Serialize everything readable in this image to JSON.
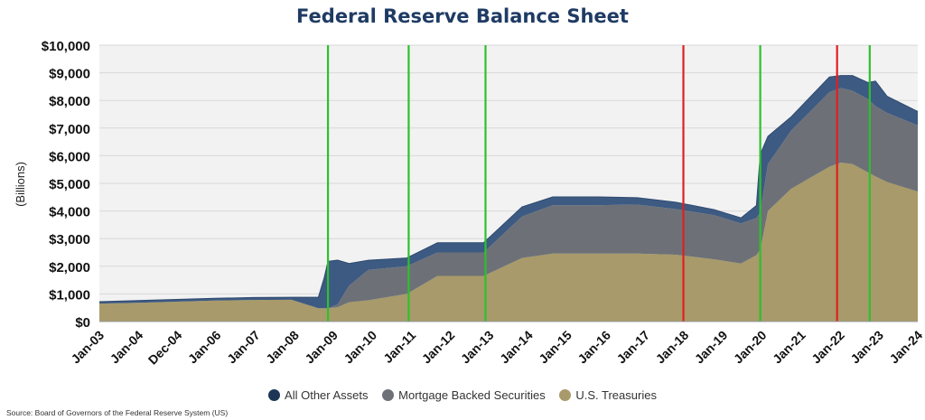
{
  "chart_data": {
    "type": "area",
    "title": "Federal Reserve Balance Sheet",
    "ylabel": "(Billions)",
    "xlabel": "",
    "ylim": [
      0,
      10000
    ],
    "yticks": [
      "$0",
      "$1,000",
      "$2,000",
      "$3,000",
      "$4,000",
      "$5,000",
      "$6,000",
      "$7,000",
      "$8,000",
      "$9,000",
      "$10,000"
    ],
    "x_range": [
      2003.0,
      2024.3
    ],
    "categories": [
      "Jan-03",
      "Jan-04",
      "Dec-04",
      "Jan-06",
      "Jan-07",
      "Jan-08",
      "Jan-09",
      "Jan-10",
      "Jan-11",
      "Jan-12",
      "Jan-13",
      "Jan-14",
      "Jan-15",
      "Jan-16",
      "Jan-17",
      "Jan-18",
      "Jan-19",
      "Jan-20",
      "Jan-21",
      "Jan-22",
      "Jan-23",
      "Jan-24"
    ],
    "x": [
      2003.0,
      2004.0,
      2005.0,
      2006.0,
      2007.0,
      2008.0,
      2008.7,
      2008.85,
      2008.95,
      2009.2,
      2009.5,
      2010.0,
      2011.0,
      2011.8,
      2012.0,
      2013.0,
      2014.0,
      2014.8,
      2016.0,
      2017.0,
      2018.0,
      2019.0,
      2019.7,
      2020.1,
      2020.2,
      2020.4,
      2021.0,
      2022.0,
      2022.3,
      2022.6,
      2023.0,
      2023.2,
      2023.5,
      2024.3
    ],
    "series": [
      {
        "name": "U.S. Treasuries",
        "color": "#a89a6a",
        "values": [
          650,
          680,
          720,
          760,
          780,
          790,
          480,
          480,
          480,
          520,
          700,
          770,
          1000,
          1650,
          1650,
          1650,
          2300,
          2460,
          2460,
          2460,
          2420,
          2250,
          2100,
          2400,
          2600,
          4000,
          4800,
          5600,
          5750,
          5700,
          5400,
          5250,
          5050,
          4700
        ]
      },
      {
        "name": "Mortgage Backed Securities",
        "color": "#6d7177",
        "values": [
          0,
          0,
          0,
          0,
          0,
          0,
          0,
          0,
          0,
          100,
          600,
          1100,
          1000,
          850,
          850,
          850,
          1500,
          1750,
          1750,
          1770,
          1650,
          1600,
          1450,
          1350,
          1350,
          1700,
          2100,
          2700,
          2700,
          2650,
          2650,
          2550,
          2500,
          2400
        ]
      },
      {
        "name": "All Other Assets",
        "color": "#3d5a82",
        "values": [
          70,
          80,
          80,
          80,
          90,
          90,
          400,
          1100,
          1700,
          1600,
          800,
          350,
          300,
          350,
          350,
          350,
          350,
          300,
          300,
          250,
          250,
          200,
          200,
          450,
          2100,
          1000,
          500,
          550,
          450,
          550,
          600,
          900,
          600,
          500
        ]
      }
    ],
    "vertical_lines": [
      {
        "x": 2008.95,
        "color": "#2ec02e"
      },
      {
        "x": 2011.05,
        "color": "#2ec02e"
      },
      {
        "x": 2013.05,
        "color": "#2ec02e"
      },
      {
        "x": 2018.2,
        "color": "#e02020"
      },
      {
        "x": 2020.2,
        "color": "#2ec02e"
      },
      {
        "x": 2022.2,
        "color": "#e02020"
      },
      {
        "x": 2023.05,
        "color": "#2ec02e"
      }
    ],
    "legend": [
      {
        "label": "All Other Assets",
        "color": "#1e3556"
      },
      {
        "label": "Mortgage Backed Securities",
        "color": "#6d7177"
      },
      {
        "label": "U.S. Treasuries",
        "color": "#a89a6a"
      }
    ],
    "legend_position": "bottom",
    "grid": true,
    "source": "Source: Board of Governors of the Federal Reserve System (US)"
  }
}
